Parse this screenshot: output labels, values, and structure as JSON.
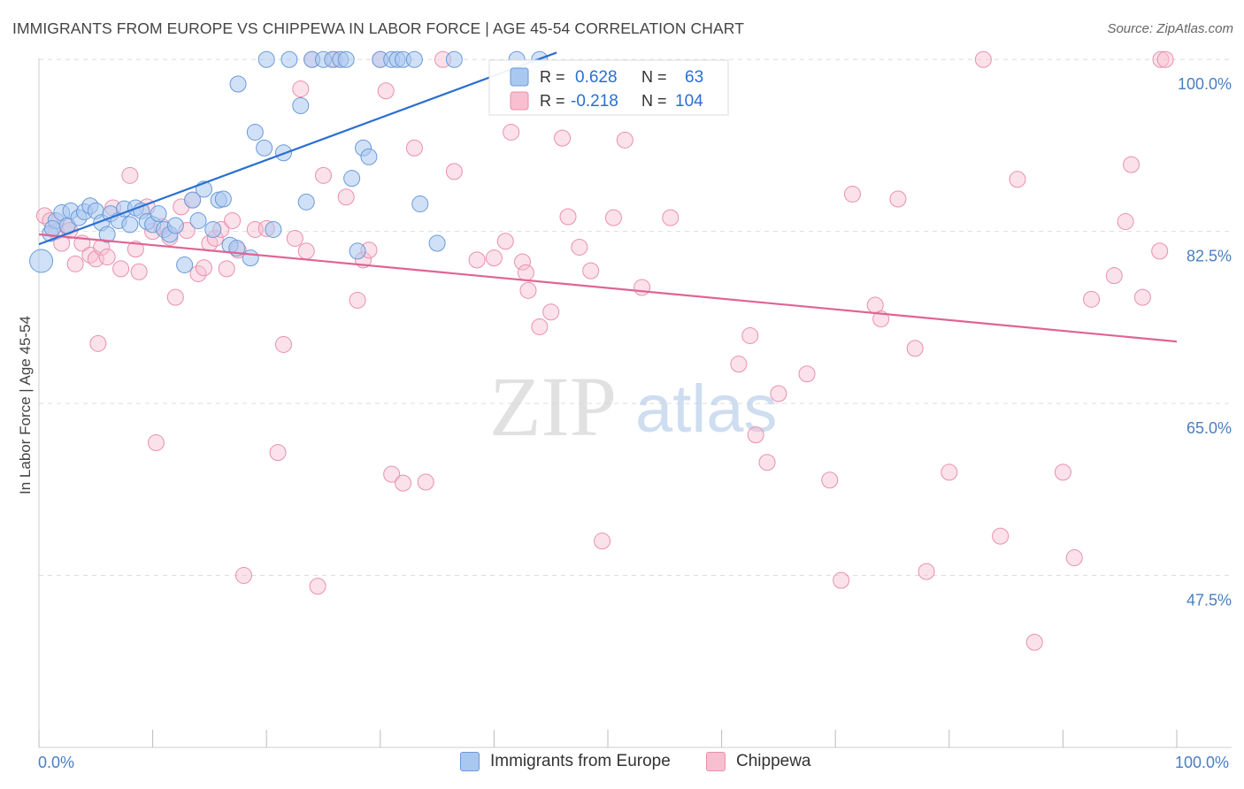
{
  "title": "IMMIGRANTS FROM EUROPE VS CHIPPEWA IN LABOR FORCE | AGE 45-54 CORRELATION CHART",
  "source": "Source: ZipAtlas.com",
  "watermark": {
    "zip": "ZIP",
    "atlas": "atlas"
  },
  "colors": {
    "blue_fill": "#a9c8f0",
    "blue_stroke": "#6a9ad8",
    "blue_line": "#2b6fd0",
    "pink_fill": "#f7bfd0",
    "pink_stroke": "#ea8fae",
    "pink_line": "#e06494",
    "axis_text": "#4a7fc1",
    "grid": "#dddddd"
  },
  "legend_top": {
    "rows": [
      {
        "r_label": "R =",
        "r_value": "0.628",
        "n_label": "N =",
        "n_value": "63"
      },
      {
        "r_label": "R =",
        "r_value": "-0.218",
        "n_label": "N =",
        "n_value": "104"
      }
    ]
  },
  "legend_bottom": {
    "series1": "Immigrants from Europe",
    "series2": "Chippewa"
  },
  "chart_data": {
    "type": "scatter",
    "title": "IMMIGRANTS FROM EUROPE VS CHIPPEWA IN LABOR FORCE | AGE 45-54 CORRELATION CHART",
    "xlabel": "",
    "ylabel": "In Labor Force | Age 45-54",
    "xlim": [
      0,
      100
    ],
    "ylim": [
      30,
      102
    ],
    "x_tick_labels": {
      "left": "0.0%",
      "right": "100.0%"
    },
    "y_ticks": [
      {
        "value": 100,
        "label": "100.0%"
      },
      {
        "value": 82.5,
        "label": "82.5%"
      },
      {
        "value": 65,
        "label": "65.0%"
      },
      {
        "value": 47.5,
        "label": "47.5%"
      }
    ],
    "grid": true,
    "series": [
      {
        "name": "Immigrants from Europe",
        "R": 0.628,
        "N": 63,
        "trend": {
          "x": [
            0,
            45.5
          ],
          "y": [
            81.2,
            100.7
          ]
        },
        "points": [
          [
            0.2,
            79.5
          ],
          [
            1.0,
            82.3
          ],
          [
            1.5,
            83.6
          ],
          [
            1.2,
            82.8
          ],
          [
            2.0,
            84.4
          ],
          [
            2.5,
            83.1
          ],
          [
            2.8,
            84.6
          ],
          [
            3.5,
            83.9
          ],
          [
            4.0,
            84.5
          ],
          [
            4.5,
            85.1
          ],
          [
            5.0,
            84.6
          ],
          [
            5.5,
            83.4
          ],
          [
            6.0,
            82.2
          ],
          [
            6.3,
            84.3
          ],
          [
            7.0,
            83.6
          ],
          [
            7.5,
            84.8
          ],
          [
            8.0,
            83.2
          ],
          [
            8.5,
            84.9
          ],
          [
            9.0,
            84.6
          ],
          [
            9.5,
            83.5
          ],
          [
            10.0,
            83.2
          ],
          [
            10.5,
            84.3
          ],
          [
            11.0,
            82.7
          ],
          [
            11.5,
            82.2
          ],
          [
            12.0,
            83.1
          ],
          [
            12.8,
            79.1
          ],
          [
            13.5,
            85.7
          ],
          [
            14.0,
            83.6
          ],
          [
            14.5,
            86.8
          ],
          [
            15.3,
            82.7
          ],
          [
            15.8,
            85.7
          ],
          [
            16.2,
            85.8
          ],
          [
            16.8,
            81.1
          ],
          [
            17.4,
            80.8
          ],
          [
            18.6,
            79.8
          ],
          [
            17.5,
            97.5
          ],
          [
            19.0,
            92.6
          ],
          [
            19.8,
            91.0
          ],
          [
            20.0,
            100.0
          ],
          [
            20.6,
            82.7
          ],
          [
            21.5,
            90.5
          ],
          [
            22.0,
            100.0
          ],
          [
            23.0,
            95.3
          ],
          [
            23.5,
            85.5
          ],
          [
            24.0,
            100.0
          ],
          [
            25.0,
            100.0
          ],
          [
            25.8,
            100.0
          ],
          [
            26.5,
            100.0
          ],
          [
            27.0,
            100.0
          ],
          [
            27.5,
            87.9
          ],
          [
            28.0,
            80.5
          ],
          [
            28.5,
            91.0
          ],
          [
            29.0,
            90.1
          ],
          [
            30.0,
            100.0
          ],
          [
            31.0,
            100.0
          ],
          [
            31.5,
            100.0
          ],
          [
            32.0,
            100.0
          ],
          [
            33.0,
            100.0
          ],
          [
            33.5,
            85.3
          ],
          [
            35.0,
            81.3
          ],
          [
            36.5,
            100.0
          ],
          [
            44.0,
            100.0
          ],
          [
            42.0,
            100.0
          ]
        ]
      },
      {
        "name": "Chippewa",
        "R": -0.218,
        "N": 104,
        "trend": {
          "x": [
            0,
            100
          ],
          "y": [
            82.2,
            71.3
          ]
        },
        "points": [
          [
            0.5,
            84.1
          ],
          [
            1.0,
            83.6
          ],
          [
            1.5,
            82.5
          ],
          [
            2.0,
            81.3
          ],
          [
            2.5,
            83.0
          ],
          [
            2.7,
            82.6
          ],
          [
            3.2,
            79.2
          ],
          [
            3.8,
            81.3
          ],
          [
            4.5,
            80.1
          ],
          [
            5.0,
            79.7
          ],
          [
            5.5,
            80.9
          ],
          [
            5.2,
            71.1
          ],
          [
            6.0,
            79.9
          ],
          [
            6.5,
            84.9
          ],
          [
            7.2,
            78.7
          ],
          [
            8.0,
            88.2
          ],
          [
            8.5,
            80.7
          ],
          [
            8.8,
            78.4
          ],
          [
            9.5,
            85.0
          ],
          [
            10.0,
            82.5
          ],
          [
            10.3,
            61.0
          ],
          [
            10.8,
            83.0
          ],
          [
            11.5,
            81.9
          ],
          [
            12.0,
            75.8
          ],
          [
            12.5,
            85.0
          ],
          [
            13.0,
            82.6
          ],
          [
            13.5,
            85.7
          ],
          [
            14.0,
            78.2
          ],
          [
            14.5,
            78.8
          ],
          [
            15.0,
            81.3
          ],
          [
            15.5,
            81.8
          ],
          [
            16.0,
            82.7
          ],
          [
            16.5,
            78.7
          ],
          [
            17.0,
            83.6
          ],
          [
            17.5,
            80.6
          ],
          [
            18.0,
            47.5
          ],
          [
            19.0,
            82.7
          ],
          [
            20.0,
            82.8
          ],
          [
            21.0,
            60.0
          ],
          [
            21.5,
            71.0
          ],
          [
            22.5,
            81.8
          ],
          [
            23.0,
            97.0
          ],
          [
            23.5,
            80.5
          ],
          [
            24.0,
            100.0
          ],
          [
            24.5,
            46.4
          ],
          [
            25.0,
            88.2
          ],
          [
            26.0,
            100.0
          ],
          [
            27.0,
            86.0
          ],
          [
            28.0,
            75.5
          ],
          [
            28.5,
            79.6
          ],
          [
            29.0,
            80.6
          ],
          [
            30.0,
            100.0
          ],
          [
            30.5,
            96.8
          ],
          [
            31.0,
            57.8
          ],
          [
            32.0,
            56.9
          ],
          [
            33.0,
            91.0
          ],
          [
            34.0,
            57.0
          ],
          [
            35.5,
            100.0
          ],
          [
            36.5,
            88.6
          ],
          [
            38.5,
            79.6
          ],
          [
            40.0,
            79.8
          ],
          [
            41.0,
            81.5
          ],
          [
            41.5,
            92.6
          ],
          [
            42.5,
            79.4
          ],
          [
            42.8,
            78.3
          ],
          [
            43.0,
            76.5
          ],
          [
            44.0,
            72.8
          ],
          [
            45.0,
            74.3
          ],
          [
            46.0,
            92.0
          ],
          [
            46.5,
            84.0
          ],
          [
            47.5,
            80.9
          ],
          [
            48.5,
            78.5
          ],
          [
            49.5,
            51.0
          ],
          [
            50.5,
            83.9
          ],
          [
            51.5,
            91.8
          ],
          [
            53.0,
            76.8
          ],
          [
            55.5,
            83.9
          ],
          [
            61.5,
            69.0
          ],
          [
            62.5,
            71.9
          ],
          [
            63.0,
            61.8
          ],
          [
            64.0,
            59.0
          ],
          [
            65.0,
            66.0
          ],
          [
            67.5,
            68.0
          ],
          [
            69.5,
            57.2
          ],
          [
            70.5,
            47.0
          ],
          [
            71.5,
            86.3
          ],
          [
            73.5,
            75.0
          ],
          [
            74.0,
            73.6
          ],
          [
            75.5,
            85.8
          ],
          [
            77.0,
            70.6
          ],
          [
            78.0,
            47.9
          ],
          [
            80.0,
            58.0
          ],
          [
            83.0,
            100.0
          ],
          [
            84.5,
            51.5
          ],
          [
            86.0,
            87.8
          ],
          [
            87.5,
            40.7
          ],
          [
            90.0,
            58.0
          ],
          [
            91.0,
            49.3
          ],
          [
            92.5,
            75.6
          ],
          [
            94.5,
            78.0
          ],
          [
            95.5,
            83.5
          ],
          [
            96.0,
            89.3
          ],
          [
            97.0,
            75.8
          ],
          [
            98.5,
            80.5
          ],
          [
            98.6,
            100.0
          ],
          [
            99.0,
            100.0
          ]
        ]
      }
    ]
  }
}
